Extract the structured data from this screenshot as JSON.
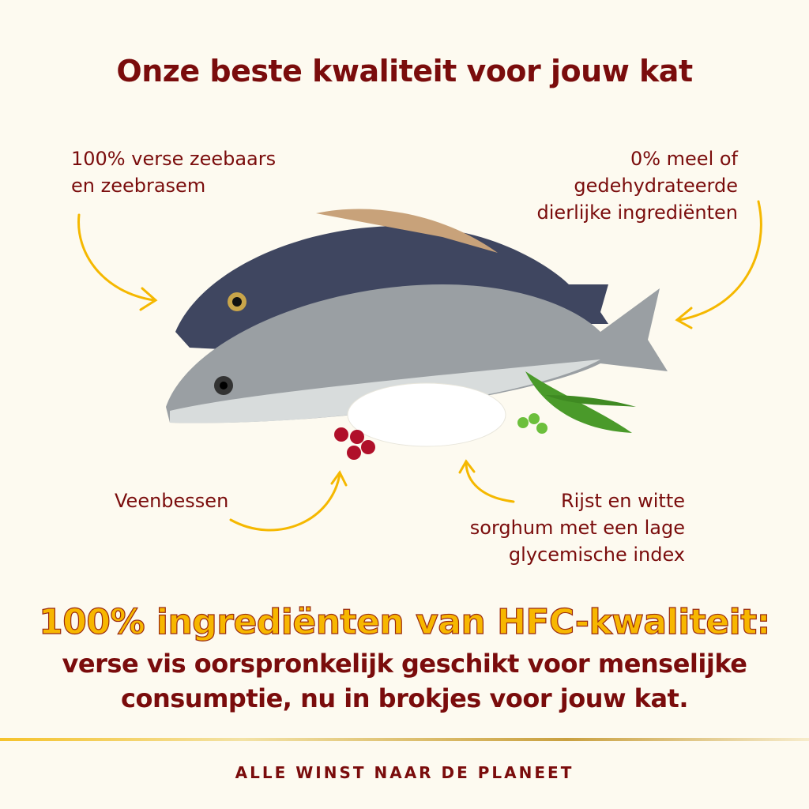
{
  "title": "Onze beste kwaliteit voor jouw kat",
  "callouts": {
    "fish": [
      "100% verse zeebaars",
      "en zeebrasem"
    ],
    "no_meal": [
      "0% meel of",
      "gedehydrateerde",
      "dierlijke ingrediënten"
    ],
    "cranberries": [
      "Veenbessen"
    ],
    "rice": [
      "Rijst en witte",
      "sorghum met een lage",
      "glycemische index"
    ]
  },
  "headline": "100% ingrediënten van HFC-kwaliteit:",
  "subline": [
    "verse vis oorspronkelijk geschikt voor menselijke",
    "consumptie, nu in brokjes voor jouw kat."
  ],
  "footer": "ALLE WINST NAAR DE PLANEET",
  "colors": {
    "background": "#fdfaf0",
    "primary": "#7a0c0c",
    "accent": "#f7b700"
  },
  "icons": [
    "curved-arrow-icon"
  ]
}
